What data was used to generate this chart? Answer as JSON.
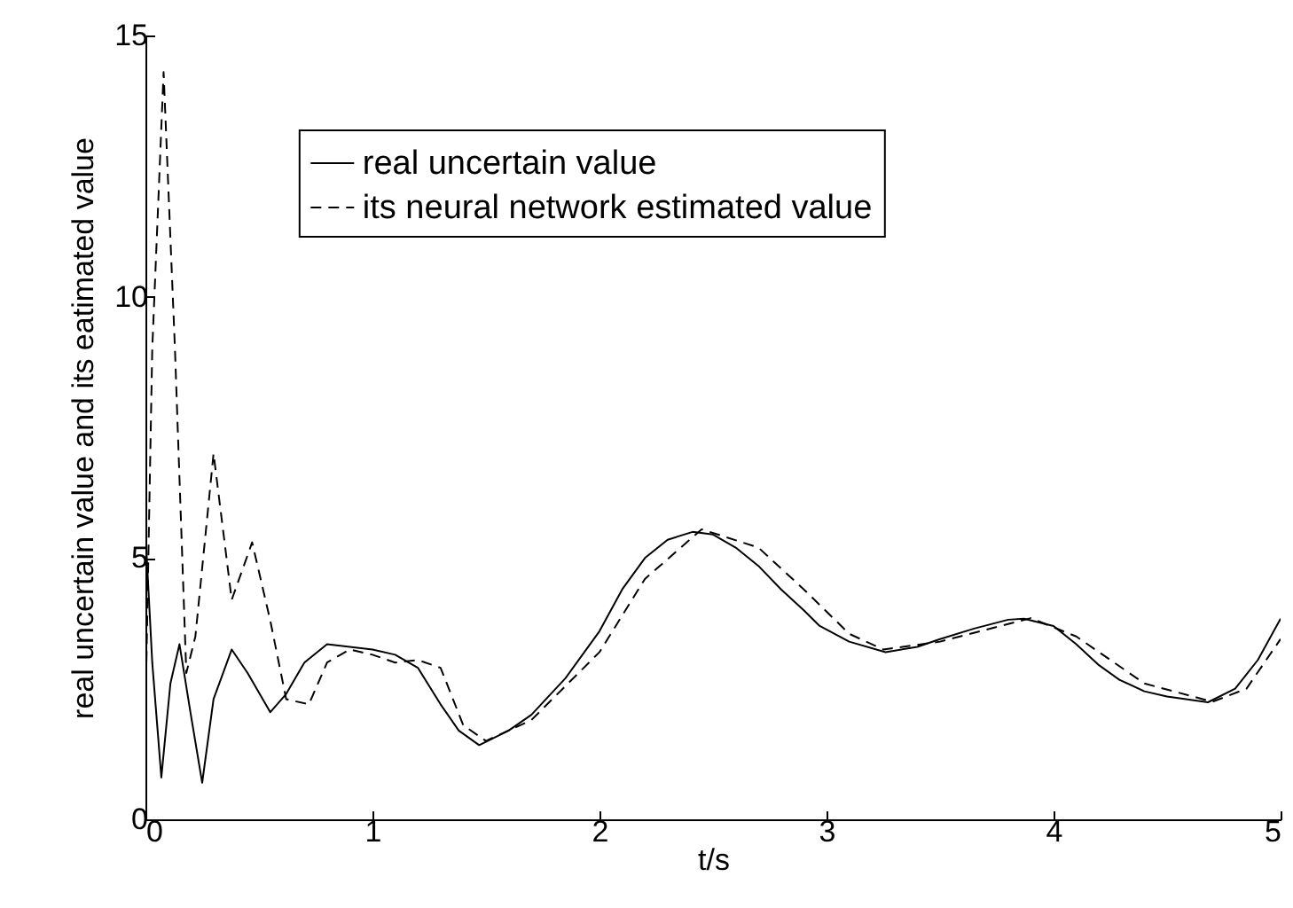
{
  "chart_data": {
    "type": "line",
    "xlabel": "t/s",
    "ylabel": "real uncertain value and its eatimated value",
    "xlim": [
      0,
      5
    ],
    "xticks": [
      0,
      1,
      2,
      3,
      4,
      5
    ],
    "ylim": [
      0,
      15
    ],
    "yticks": [
      0,
      5,
      10,
      15
    ],
    "grid": false,
    "legend": "top",
    "marker": "none",
    "series": [
      {
        "name": "real uncertain value",
        "color": "#000000",
        "line_style": "solid",
        "x": [
          0,
          0.03,
          0.07,
          0.11,
          0.15,
          0.2,
          0.25,
          0.3,
          0.38,
          0.45,
          0.55,
          0.62,
          0.7,
          0.8,
          0.9,
          1.0,
          1.1,
          1.2,
          1.3,
          1.38,
          1.47,
          1.6,
          1.7,
          1.85,
          2.0,
          2.1,
          2.2,
          2.3,
          2.41,
          2.5,
          2.6,
          2.7,
          2.8,
          2.9,
          2.97,
          3.1,
          3.26,
          3.4,
          3.5,
          3.65,
          3.8,
          3.87,
          4.0,
          4.1,
          4.2,
          4.29,
          4.4,
          4.5,
          4.68,
          4.8,
          4.9,
          5.0
        ],
        "values": [
          5.5,
          3.0,
          0.8,
          2.6,
          3.35,
          2.0,
          0.7,
          2.3,
          3.25,
          2.8,
          2.05,
          2.4,
          3.0,
          3.35,
          3.3,
          3.25,
          3.15,
          2.9,
          2.2,
          1.7,
          1.42,
          1.7,
          2.0,
          2.7,
          3.6,
          4.4,
          5.0,
          5.35,
          5.5,
          5.45,
          5.2,
          4.85,
          4.4,
          4.0,
          3.7,
          3.4,
          3.2,
          3.3,
          3.45,
          3.65,
          3.82,
          3.84,
          3.7,
          3.35,
          2.95,
          2.67,
          2.45,
          2.35,
          2.24,
          2.5,
          3.05,
          3.84
        ]
      },
      {
        "name": "its neural network estimated value",
        "color": "#000000",
        "line_style": "dashed",
        "x": [
          0,
          0.03,
          0.08,
          0.13,
          0.18,
          0.22,
          0.3,
          0.38,
          0.47,
          0.55,
          0.62,
          0.72,
          0.8,
          0.9,
          1.0,
          1.1,
          1.2,
          1.3,
          1.4,
          1.5,
          1.7,
          2.0,
          2.2,
          2.45,
          2.7,
          2.9,
          3.1,
          3.25,
          3.5,
          3.9,
          4.1,
          4.4,
          4.7,
          4.85,
          5.0
        ],
        "values": [
          2.0,
          9.0,
          14.3,
          9.0,
          2.8,
          3.5,
          7.0,
          4.2,
          5.3,
          3.8,
          2.3,
          2.2,
          3.0,
          3.25,
          3.15,
          3.0,
          3.05,
          2.9,
          1.8,
          1.5,
          1.9,
          3.2,
          4.6,
          5.55,
          5.2,
          4.4,
          3.55,
          3.25,
          3.4,
          3.85,
          3.5,
          2.6,
          2.25,
          2.5,
          3.45
        ]
      }
    ]
  }
}
